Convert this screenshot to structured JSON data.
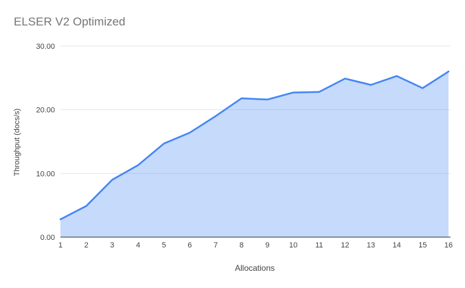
{
  "chart_data": {
    "type": "area",
    "title": "ELSER V2 Optimized",
    "xlabel": "Allocations",
    "ylabel": "Throughput (docs/s)",
    "categories": [
      "1",
      "2",
      "3",
      "4",
      "5",
      "6",
      "7",
      "8",
      "9",
      "10",
      "11",
      "12",
      "13",
      "14",
      "15",
      "16"
    ],
    "values": [
      2.8,
      4.9,
      9.0,
      11.3,
      14.7,
      16.4,
      19.0,
      21.8,
      21.6,
      22.7,
      22.8,
      24.9,
      23.9,
      25.3,
      23.4,
      26.0
    ],
    "ylim": [
      0,
      30
    ],
    "yticks": [
      0,
      10,
      20,
      30
    ],
    "ytick_labels": [
      "0.00",
      "10.00",
      "20.00",
      "30.00"
    ],
    "grid": true,
    "legend": "none"
  },
  "colors": {
    "line": "#4285f4",
    "fill": "#4285f4",
    "fill_opacity": "0.3",
    "grid": "#e6e6e6",
    "baseline": "#333333",
    "tick_label": "#424242",
    "title": "#757575"
  }
}
